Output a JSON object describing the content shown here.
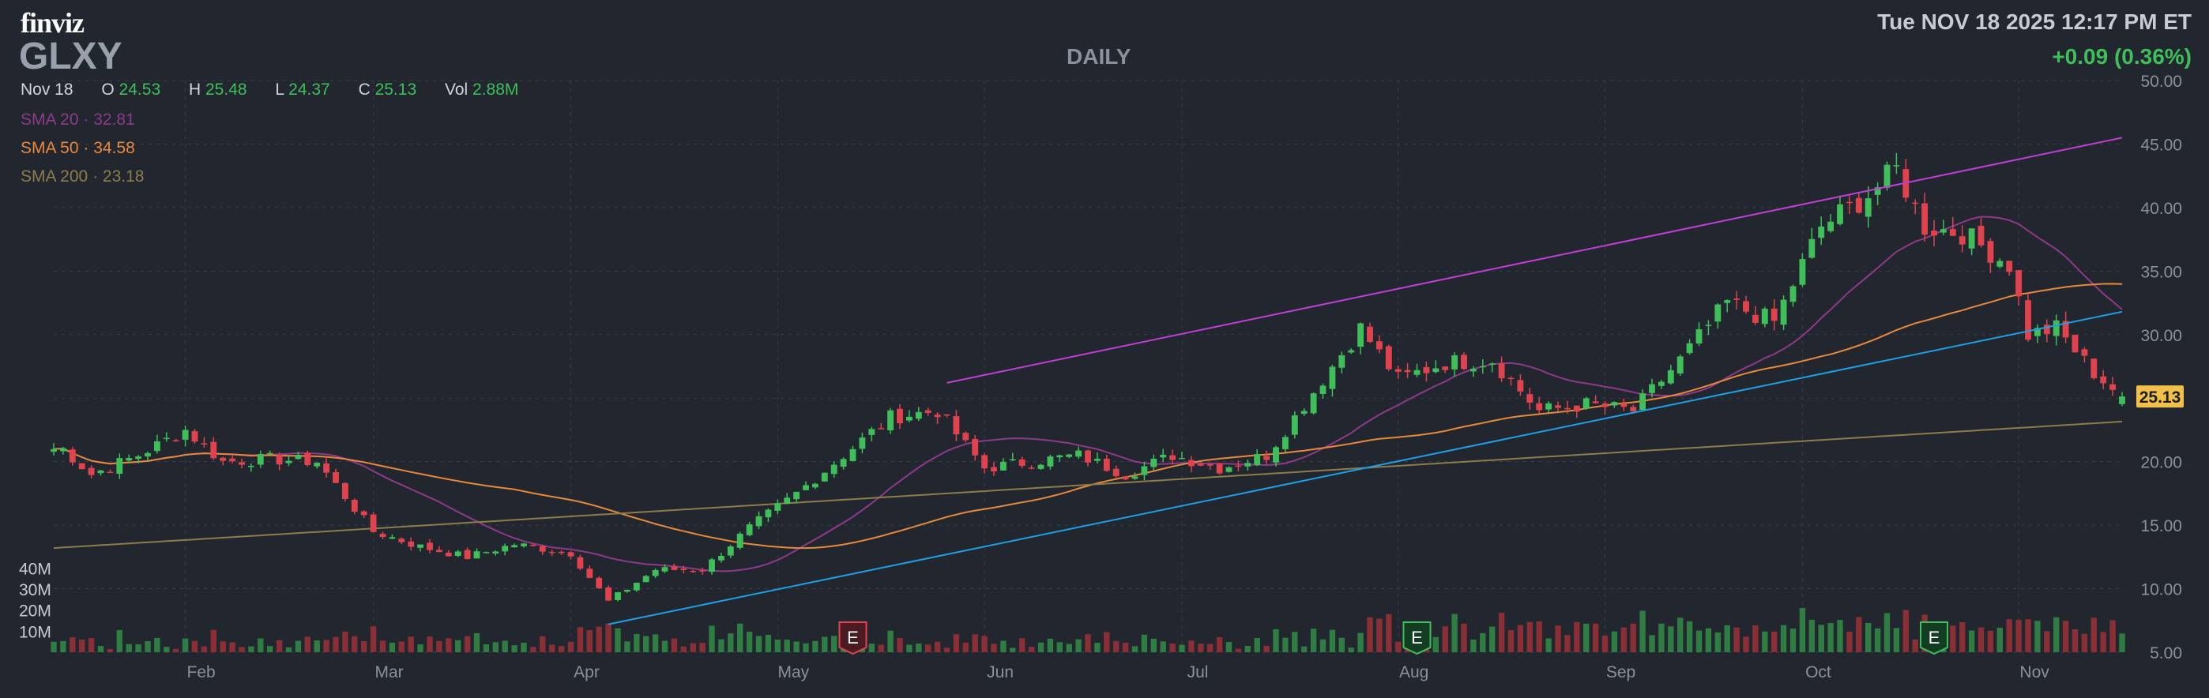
{
  "header": {
    "logo": "finviz",
    "ticker": "GLXY",
    "timeframe": "DAILY",
    "datetime": "Tue NOV 18 2025 12:17 PM ET",
    "change": "+0.09 (0.36%)"
  },
  "ohlc": {
    "date": "Nov 18",
    "open_label": "O",
    "open": "24.53",
    "high_label": "H",
    "high": "25.48",
    "low_label": "L",
    "low": "24.37",
    "close_label": "C",
    "close": "25.13",
    "vol_label": "Vol",
    "vol": "2.88M"
  },
  "indicators": {
    "sma20": {
      "label": "SMA 20",
      "value": "32.81",
      "color": "#8e3a8a"
    },
    "sma50": {
      "label": "SMA 50",
      "value": "34.58",
      "color": "#e8893b"
    },
    "sma200": {
      "label": "SMA 200",
      "value": "23.18",
      "color": "#8c7d4b"
    }
  },
  "colors": {
    "background": "#22262f",
    "up": "#3fbf5a",
    "down": "#e0434d",
    "grid": "#3a3f4b",
    "upper_trendline": "#c13fd6",
    "lower_trendline": "#1ea0e6",
    "last_price_badge": "#f0c04a"
  },
  "chart_data": {
    "type": "candlestick",
    "title": "GLXY",
    "ylim": [
      5,
      50
    ],
    "y_ticks": [
      "50.00",
      "45.00",
      "40.00",
      "35.00",
      "30.00",
      "25.00",
      "20.00",
      "15.00",
      "10.00",
      "5.00"
    ],
    "x_tick_labels": [
      "Feb",
      "Mar",
      "Apr",
      "May",
      "Jun",
      "Jul",
      "Aug",
      "Sep",
      "Oct",
      "Nov"
    ],
    "volume_ticks": [
      "40M",
      "30M",
      "20M",
      "10M"
    ],
    "last_price": "25.13",
    "anchors": [
      [
        "2025-01-15",
        21.0
      ],
      [
        "2025-01-20",
        19.0
      ],
      [
        "2025-01-27",
        20.5
      ],
      [
        "2025-02-03",
        22.5
      ],
      [
        "2025-02-07",
        20.0
      ],
      [
        "2025-02-14",
        20.2
      ],
      [
        "2025-02-21",
        20.0
      ],
      [
        "2025-03-03",
        14.5
      ],
      [
        "2025-03-10",
        13.3
      ],
      [
        "2025-03-17",
        12.5
      ],
      [
        "2025-03-24",
        13.5
      ],
      [
        "2025-04-01",
        12.8
      ],
      [
        "2025-04-07",
        9.0
      ],
      [
        "2025-04-14",
        11.5
      ],
      [
        "2025-04-21",
        11.5
      ],
      [
        "2025-04-28",
        14.8
      ],
      [
        "2025-05-05",
        17.5
      ],
      [
        "2025-05-12",
        20.5
      ],
      [
        "2025-05-19",
        23.5
      ],
      [
        "2025-05-26",
        24.0
      ],
      [
        "2025-06-02",
        19.5
      ],
      [
        "2025-06-09",
        20.0
      ],
      [
        "2025-06-16",
        20.5
      ],
      [
        "2025-06-23",
        19.0
      ],
      [
        "2025-06-30",
        20.5
      ],
      [
        "2025-07-07",
        19.5
      ],
      [
        "2025-07-14",
        20.5
      ],
      [
        "2025-07-21",
        25.5
      ],
      [
        "2025-07-28",
        30.5
      ],
      [
        "2025-08-01",
        26.5
      ],
      [
        "2025-08-08",
        27.8
      ],
      [
        "2025-08-15",
        28.0
      ],
      [
        "2025-08-22",
        24.0
      ],
      [
        "2025-08-29",
        24.5
      ],
      [
        "2025-09-05",
        24.0
      ],
      [
        "2025-09-12",
        28.0
      ],
      [
        "2025-09-19",
        32.5
      ],
      [
        "2025-09-26",
        31.0
      ],
      [
        "2025-10-03",
        38.5
      ],
      [
        "2025-10-10",
        41.0
      ],
      [
        "2025-10-15",
        43.0
      ],
      [
        "2025-10-20",
        38.5
      ],
      [
        "2025-10-24",
        38.0
      ],
      [
        "2025-10-31",
        35.5
      ],
      [
        "2025-11-04",
        30.0
      ],
      [
        "2025-11-07",
        30.5
      ],
      [
        "2025-11-13",
        27.0
      ],
      [
        "2025-11-18",
        25.13
      ]
    ],
    "earnings_markers": [
      {
        "date": "2025-05-13",
        "label": "E",
        "kind": "miss"
      },
      {
        "date": "2025-08-05",
        "label": "E",
        "kind": "beat"
      },
      {
        "date": "2025-10-21",
        "label": "E",
        "kind": "beat"
      }
    ],
    "trendlines": [
      {
        "name": "upper",
        "from": [
          "2025-05-27",
          26.2
        ],
        "to": [
          "2025-11-18",
          45.5
        ]
      },
      {
        "name": "lower",
        "from": [
          "2025-04-07",
          7.2
        ],
        "to": [
          "2025-11-18",
          31.8
        ]
      }
    ]
  }
}
